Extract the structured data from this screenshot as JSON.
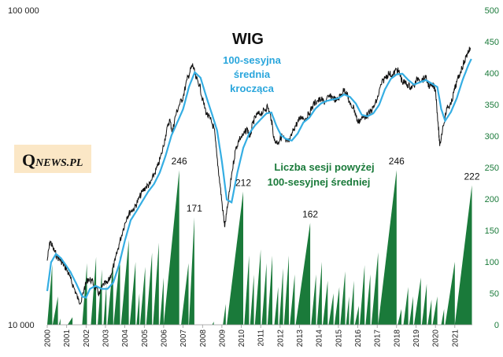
{
  "chart_data": {
    "type": "line",
    "title": "WIG",
    "ma_label_lines": [
      "100-sesyjna",
      "średnia",
      "krocząca"
    ],
    "count_label_lines": [
      "Liczba sesji powyżej",
      "100-sesyjnej średniej"
    ],
    "left_axis": {
      "scale": "log",
      "range": [
        10000,
        100000
      ],
      "ticks": [
        "10 000",
        "100 000"
      ],
      "tick_values": [
        10000,
        100000
      ]
    },
    "right_axis": {
      "range": [
        0,
        500
      ],
      "ticks": [
        "0",
        "50",
        "100",
        "150",
        "200",
        "250",
        "300",
        "350",
        "400",
        "450",
        "500"
      ],
      "tick_values": [
        0,
        50,
        100,
        150,
        200,
        250,
        300,
        350,
        400,
        450,
        500
      ]
    },
    "x_ticks": [
      "2000",
      "2001",
      "2002",
      "2003",
      "2004",
      "2005",
      "2006",
      "2007",
      "2008",
      "2009",
      "2010",
      "2011",
      "2012",
      "2013",
      "2014",
      "2015",
      "2016",
      "2017",
      "2018",
      "2019",
      "2020",
      "2021"
    ],
    "x_range": [
      2000,
      2021.9
    ],
    "colors": {
      "wig": "#111111",
      "ma": "#35aee3",
      "bars": "#1a7a3a"
    },
    "series": [
      {
        "name": "WIG",
        "points": [
          [
            2000.0,
            16000
          ],
          [
            2000.15,
            18500
          ],
          [
            2000.3,
            17500
          ],
          [
            2000.5,
            16500
          ],
          [
            2000.7,
            16000
          ],
          [
            2000.85,
            15500
          ],
          [
            2001.0,
            15000
          ],
          [
            2001.2,
            14000
          ],
          [
            2001.4,
            13000
          ],
          [
            2001.6,
            12000
          ],
          [
            2001.75,
            11800
          ],
          [
            2001.9,
            13000
          ],
          [
            2002.1,
            14000
          ],
          [
            2002.3,
            13800
          ],
          [
            2002.5,
            13000
          ],
          [
            2002.7,
            12500
          ],
          [
            2002.9,
            13500
          ],
          [
            2003.1,
            13500
          ],
          [
            2003.3,
            14500
          ],
          [
            2003.5,
            16000
          ],
          [
            2003.7,
            18000
          ],
          [
            2003.9,
            20000
          ],
          [
            2004.1,
            22000
          ],
          [
            2004.3,
            23000
          ],
          [
            2004.5,
            23500
          ],
          [
            2004.7,
            25000
          ],
          [
            2004.9,
            26500
          ],
          [
            2005.1,
            27500
          ],
          [
            2005.3,
            28000
          ],
          [
            2005.5,
            30000
          ],
          [
            2005.7,
            32000
          ],
          [
            2005.9,
            35000
          ],
          [
            2006.1,
            40000
          ],
          [
            2006.3,
            45000
          ],
          [
            2006.45,
            41000
          ],
          [
            2006.6,
            46000
          ],
          [
            2006.8,
            50000
          ],
          [
            2007.0,
            53000
          ],
          [
            2007.2,
            60000
          ],
          [
            2007.4,
            65000
          ],
          [
            2007.5,
            67000
          ],
          [
            2007.65,
            61000
          ],
          [
            2007.85,
            58000
          ],
          [
            2008.0,
            52000
          ],
          [
            2008.2,
            47000
          ],
          [
            2008.4,
            45000
          ],
          [
            2008.6,
            42000
          ],
          [
            2008.75,
            34000
          ],
          [
            2008.9,
            28000
          ],
          [
            2009.05,
            23000
          ],
          [
            2009.15,
            20500
          ],
          [
            2009.3,
            24000
          ],
          [
            2009.5,
            30000
          ],
          [
            2009.7,
            36000
          ],
          [
            2009.9,
            39000
          ],
          [
            2010.1,
            40000
          ],
          [
            2010.3,
            42000
          ],
          [
            2010.45,
            39500
          ],
          [
            2010.6,
            44000
          ],
          [
            2010.8,
            46500
          ],
          [
            2011.0,
            47000
          ],
          [
            2011.2,
            48000
          ],
          [
            2011.35,
            49500
          ],
          [
            2011.55,
            45000
          ],
          [
            2011.7,
            38500
          ],
          [
            2011.9,
            38000
          ],
          [
            2012.1,
            40000
          ],
          [
            2012.3,
            38000
          ],
          [
            2012.5,
            38500
          ],
          [
            2012.7,
            42000
          ],
          [
            2012.9,
            44000
          ],
          [
            2013.1,
            46000
          ],
          [
            2013.3,
            45000
          ],
          [
            2013.5,
            47000
          ],
          [
            2013.7,
            50000
          ],
          [
            2013.9,
            51500
          ],
          [
            2014.1,
            52000
          ],
          [
            2014.3,
            51000
          ],
          [
            2014.5,
            53000
          ],
          [
            2014.7,
            53000
          ],
          [
            2014.9,
            51500
          ],
          [
            2015.1,
            53500
          ],
          [
            2015.3,
            56000
          ],
          [
            2015.45,
            54000
          ],
          [
            2015.6,
            50000
          ],
          [
            2015.8,
            49000
          ],
          [
            2016.0,
            44000
          ],
          [
            2016.15,
            45000
          ],
          [
            2016.4,
            46000
          ],
          [
            2016.6,
            47000
          ],
          [
            2016.8,
            49000
          ],
          [
            2017.0,
            52000
          ],
          [
            2017.2,
            58000
          ],
          [
            2017.4,
            61000
          ],
          [
            2017.6,
            63000
          ],
          [
            2017.8,
            62000
          ],
          [
            2018.0,
            65000
          ],
          [
            2018.15,
            63000
          ],
          [
            2018.3,
            59000
          ],
          [
            2018.5,
            58500
          ],
          [
            2018.7,
            57000
          ],
          [
            2018.9,
            57500
          ],
          [
            2019.1,
            61000
          ],
          [
            2019.3,
            60000
          ],
          [
            2019.5,
            61000
          ],
          [
            2019.7,
            57000
          ],
          [
            2019.9,
            57500
          ],
          [
            2020.0,
            56000
          ],
          [
            2020.15,
            43000
          ],
          [
            2020.22,
            37000
          ],
          [
            2020.4,
            43000
          ],
          [
            2020.6,
            49000
          ],
          [
            2020.8,
            50000
          ],
          [
            2020.95,
            55000
          ],
          [
            2021.1,
            59000
          ],
          [
            2021.3,
            64000
          ],
          [
            2021.5,
            69000
          ],
          [
            2021.65,
            73000
          ],
          [
            2021.8,
            76000
          ]
        ]
      },
      {
        "name": "100-sesyjna średnia krocząca",
        "points": [
          [
            2000.0,
            12800
          ],
          [
            2000.2,
            15800
          ],
          [
            2000.45,
            16800
          ],
          [
            2000.7,
            16300
          ],
          [
            2000.95,
            15500
          ],
          [
            2001.2,
            14700
          ],
          [
            2001.5,
            13500
          ],
          [
            2001.8,
            12300
          ],
          [
            2002.0,
            12200
          ],
          [
            2002.2,
            13000
          ],
          [
            2002.5,
            13300
          ],
          [
            2002.8,
            13000
          ],
          [
            2003.1,
            13000
          ],
          [
            2003.4,
            13600
          ],
          [
            2003.7,
            15500
          ],
          [
            2004.0,
            18500
          ],
          [
            2004.3,
            21500
          ],
          [
            2004.6,
            23000
          ],
          [
            2004.9,
            24700
          ],
          [
            2005.2,
            26500
          ],
          [
            2005.5,
            28000
          ],
          [
            2005.8,
            30500
          ],
          [
            2006.1,
            34500
          ],
          [
            2006.4,
            40000
          ],
          [
            2006.7,
            44000
          ],
          [
            2007.0,
            48500
          ],
          [
            2007.3,
            57000
          ],
          [
            2007.6,
            63500
          ],
          [
            2007.9,
            61000
          ],
          [
            2008.2,
            53000
          ],
          [
            2008.5,
            46500
          ],
          [
            2008.75,
            41500
          ],
          [
            2009.0,
            33000
          ],
          [
            2009.25,
            25000
          ],
          [
            2009.5,
            24500
          ],
          [
            2009.8,
            30500
          ],
          [
            2010.1,
            36500
          ],
          [
            2010.4,
            40500
          ],
          [
            2010.7,
            43000
          ],
          [
            2011.0,
            45000
          ],
          [
            2011.3,
            47000
          ],
          [
            2011.55,
            47300
          ],
          [
            2011.8,
            43000
          ],
          [
            2012.05,
            40000
          ],
          [
            2012.3,
            39000
          ],
          [
            2012.6,
            38500
          ],
          [
            2012.9,
            40500
          ],
          [
            2013.2,
            44000
          ],
          [
            2013.5,
            45500
          ],
          [
            2013.8,
            48500
          ],
          [
            2014.1,
            50500
          ],
          [
            2014.4,
            51500
          ],
          [
            2014.7,
            52000
          ],
          [
            2015.0,
            52500
          ],
          [
            2015.3,
            54000
          ],
          [
            2015.6,
            53000
          ],
          [
            2015.9,
            50500
          ],
          [
            2016.2,
            46500
          ],
          [
            2016.5,
            46000
          ],
          [
            2016.8,
            47000
          ],
          [
            2017.1,
            50000
          ],
          [
            2017.4,
            56000
          ],
          [
            2017.7,
            60500
          ],
          [
            2018.0,
            62500
          ],
          [
            2018.3,
            62800
          ],
          [
            2018.6,
            60000
          ],
          [
            2018.9,
            58000
          ],
          [
            2019.2,
            59000
          ],
          [
            2019.5,
            60000
          ],
          [
            2019.8,
            58500
          ],
          [
            2020.1,
            57000
          ],
          [
            2020.3,
            48500
          ],
          [
            2020.5,
            44500
          ],
          [
            2020.8,
            47500
          ],
          [
            2021.1,
            52500
          ],
          [
            2021.4,
            60000
          ],
          [
            2021.7,
            67000
          ],
          [
            2021.85,
            70000
          ]
        ]
      }
    ],
    "bars": {
      "name": "Liczba sesji powyżej 100-sesyjnej średniej",
      "runs": [
        [
          2000.0,
          2000.26,
          96
        ],
        [
          2000.28,
          2000.55,
          45
        ],
        [
          2000.6,
          2000.68,
          10
        ],
        [
          2001.05,
          2001.3,
          12
        ],
        [
          2001.8,
          2002.05,
          98
        ],
        [
          2002.25,
          2002.52,
          108
        ],
        [
          2002.6,
          2002.82,
          88
        ],
        [
          2002.9,
          2003.05,
          65
        ],
        [
          2003.1,
          2003.4,
          100
        ],
        [
          2003.42,
          2003.75,
          110
        ],
        [
          2003.8,
          2004.2,
          135
        ],
        [
          2004.25,
          2004.55,
          100
        ],
        [
          2004.6,
          2004.75,
          50
        ],
        [
          2004.78,
          2005.05,
          92
        ],
        [
          2005.1,
          2005.4,
          115
        ],
        [
          2005.45,
          2005.75,
          130
        ],
        [
          2005.8,
          2006.0,
          75
        ],
        [
          2006.0,
          2006.8,
          246
        ],
        [
          2006.9,
          2007.28,
          98
        ],
        [
          2007.3,
          2007.58,
          171
        ],
        [
          2008.5,
          2008.58,
          5
        ],
        [
          2009.05,
          2009.2,
          33
        ],
        [
          2009.25,
          2010.1,
          212
        ],
        [
          2010.15,
          2010.4,
          110
        ],
        [
          2010.45,
          2010.65,
          80
        ],
        [
          2010.7,
          2011.0,
          120
        ],
        [
          2011.05,
          2011.3,
          98
        ],
        [
          2011.35,
          2011.6,
          110
        ],
        [
          2011.7,
          2011.9,
          60
        ],
        [
          2011.95,
          2012.15,
          90
        ],
        [
          2012.2,
          2012.45,
          110
        ],
        [
          2012.5,
          2012.75,
          80
        ],
        [
          2012.8,
          2013.55,
          162
        ],
        [
          2013.6,
          2013.85,
          80
        ],
        [
          2013.9,
          2014.15,
          100
        ],
        [
          2014.2,
          2014.45,
          70
        ],
        [
          2014.5,
          2014.75,
          50
        ],
        [
          2014.8,
          2015.05,
          60
        ],
        [
          2015.1,
          2015.35,
          85
        ],
        [
          2015.4,
          2015.55,
          45
        ],
        [
          2015.6,
          2015.8,
          70
        ],
        [
          2015.85,
          2016.05,
          30
        ],
        [
          2016.1,
          2016.35,
          95
        ],
        [
          2016.4,
          2016.65,
          80
        ],
        [
          2016.7,
          2017.05,
          115
        ],
        [
          2017.05,
          2018.0,
          246
        ],
        [
          2018.05,
          2018.25,
          25
        ],
        [
          2018.35,
          2018.6,
          60
        ],
        [
          2018.65,
          2018.85,
          45
        ],
        [
          2018.9,
          2019.25,
          75
        ],
        [
          2019.3,
          2019.55,
          65
        ],
        [
          2019.6,
          2019.8,
          40
        ],
        [
          2019.85,
          2020.1,
          45
        ],
        [
          2020.3,
          2020.45,
          25
        ],
        [
          2020.5,
          2021.0,
          100
        ],
        [
          2021.0,
          2021.88,
          222
        ]
      ],
      "peak_labels": [
        {
          "text": "246",
          "x": 2006.8,
          "value": 246
        },
        {
          "text": "171",
          "x": 2007.58,
          "value": 171
        },
        {
          "text": "212",
          "x": 2010.1,
          "value": 212
        },
        {
          "text": "162",
          "x": 2013.55,
          "value": 162
        },
        {
          "text": "246",
          "x": 2018.0,
          "value": 246
        },
        {
          "text": "222",
          "x": 2021.88,
          "value": 222
        }
      ]
    }
  },
  "brand": {
    "q": "Q",
    "rest": "NEWS.PL"
  }
}
